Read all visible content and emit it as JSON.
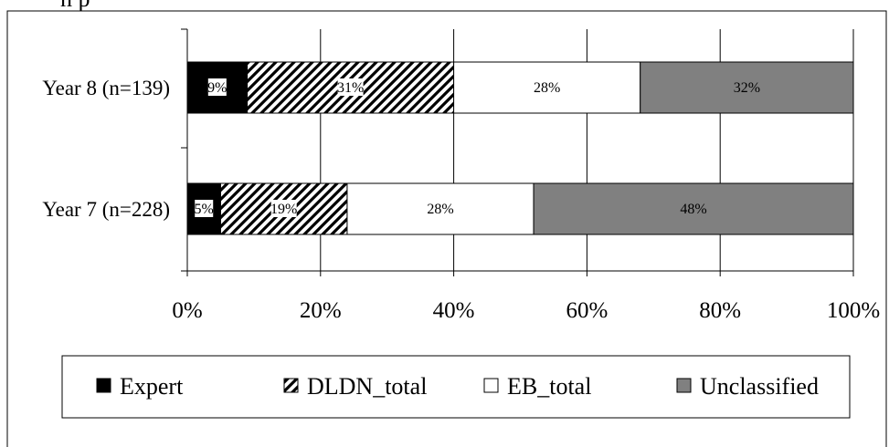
{
  "partial_title": "n p",
  "chart_data": {
    "type": "bar",
    "orientation": "horizontal",
    "stacked": true,
    "normalized": true,
    "title": "",
    "xlabel": "",
    "ylabel": "",
    "xlim": [
      0,
      100
    ],
    "x_ticks": [
      "0%",
      "20%",
      "40%",
      "60%",
      "80%",
      "100%"
    ],
    "grid": "vertical",
    "legend_position": "bottom",
    "categories": [
      "Year 8 (n=139)",
      "Year 7 (n=228)"
    ],
    "series": [
      {
        "name": "Expert",
        "values": [
          9,
          5
        ],
        "labels": [
          "9%",
          "5%"
        ],
        "color": "#000000",
        "pattern": "solid"
      },
      {
        "name": "DLDN_total",
        "values": [
          31,
          19
        ],
        "labels": [
          "31%",
          "19%"
        ],
        "color": "#000000",
        "pattern": "diagonal-hatch"
      },
      {
        "name": "EB_total",
        "values": [
          28,
          28
        ],
        "labels": [
          "28%",
          "28%"
        ],
        "color": "#ffffff",
        "pattern": "solid"
      },
      {
        "name": "Unclassified",
        "values": [
          32,
          48
        ],
        "labels": [
          "32%",
          "48%"
        ],
        "color": "#808080",
        "pattern": "solid"
      }
    ]
  }
}
